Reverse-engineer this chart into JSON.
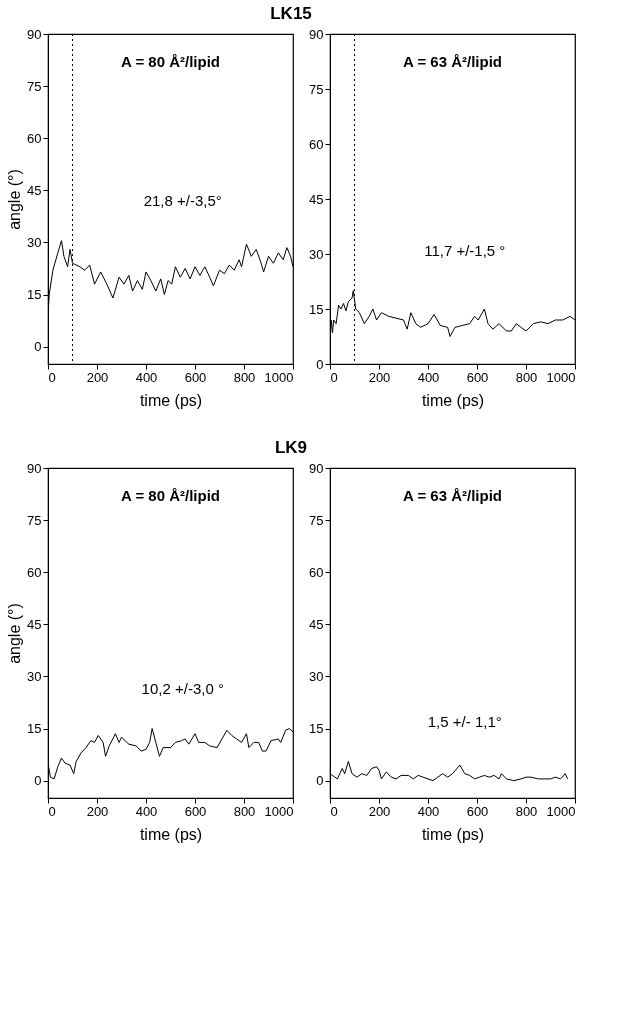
{
  "chart_data": [
    {
      "type": "line",
      "title": "LK15",
      "xlabel": "time (ps)",
      "ylabel": "angle (°)",
      "color": "#000000",
      "line_style": "solid",
      "xlim": [
        0,
        1000
      ],
      "ylim": [
        -5,
        90
      ],
      "xticks": [
        0,
        200,
        400,
        600,
        800,
        1000
      ],
      "yticks": [
        0,
        15,
        30,
        45,
        60,
        75,
        90
      ],
      "annotations": [
        "A = 80 Å²/lipid",
        "21,8 +/-3,5°"
      ],
      "ref_lines": [
        {
          "axis": "x",
          "value": 100,
          "line_style": "dotted"
        }
      ],
      "x": [
        0,
        5,
        20,
        40,
        55,
        65,
        80,
        90,
        100,
        130,
        150,
        170,
        190,
        215,
        240,
        265,
        290,
        310,
        330,
        345,
        365,
        385,
        400,
        420,
        440,
        460,
        475,
        490,
        505,
        520,
        540,
        560,
        580,
        600,
        620,
        640,
        660,
        675,
        700,
        720,
        740,
        760,
        780,
        790,
        810,
        830,
        850,
        870,
        880,
        900,
        920,
        940,
        960,
        975,
        990,
        1000
      ],
      "values": [
        9,
        15,
        22,
        27,
        30.5,
        26,
        23,
        28,
        24,
        23,
        22,
        23.5,
        18,
        21.5,
        18,
        14,
        20,
        18,
        20.5,
        16,
        19,
        16.5,
        21.5,
        19,
        16,
        19.5,
        15,
        19,
        18,
        23,
        20,
        22.5,
        19.5,
        23,
        20.5,
        23,
        20,
        17.5,
        22,
        21,
        23.5,
        22,
        25,
        23,
        29.5,
        26,
        28,
        24,
        21.5,
        26,
        24,
        27,
        25,
        28.5,
        26,
        23
      ]
    },
    {
      "type": "line",
      "xlabel": "time (ps)",
      "color": "#000000",
      "line_style": "solid",
      "xlim": [
        0,
        1000
      ],
      "ylim": [
        0,
        90
      ],
      "xticks": [
        0,
        200,
        400,
        600,
        800,
        1000
      ],
      "yticks": [
        0,
        15,
        30,
        45,
        60,
        75,
        90
      ],
      "annotations": [
        "A = 63 Å²/lipid",
        "11,7 +/-1,5 °"
      ],
      "ref_lines": [
        {
          "axis": "x",
          "value": 100,
          "line_style": "dotted"
        }
      ],
      "x": [
        0,
        5,
        10,
        15,
        25,
        35,
        45,
        55,
        65,
        75,
        90,
        95,
        105,
        120,
        140,
        160,
        175,
        190,
        210,
        240,
        270,
        300,
        315,
        330,
        350,
        370,
        400,
        425,
        450,
        480,
        490,
        510,
        540,
        570,
        590,
        605,
        630,
        645,
        665,
        690,
        720,
        740,
        760,
        780,
        800,
        830,
        860,
        890,
        920,
        950,
        980,
        1000
      ],
      "values": [
        7,
        12,
        8.5,
        12,
        11,
        16,
        15,
        16.5,
        14.5,
        17,
        18,
        20,
        15,
        14,
        11,
        13,
        15,
        12,
        14,
        13,
        12.5,
        12,
        9.5,
        14,
        11,
        10,
        11,
        13.5,
        10.5,
        10,
        7.5,
        10,
        10.5,
        11,
        13,
        12,
        15,
        11,
        9.5,
        11,
        9,
        9,
        11,
        10,
        9,
        11,
        11.5,
        11,
        12,
        12,
        13,
        12
      ]
    },
    {
      "type": "line",
      "title": "LK9",
      "xlabel": "time (ps)",
      "ylabel": "angle (°)",
      "color": "#000000",
      "line_style": "solid",
      "xlim": [
        0,
        1000
      ],
      "ylim": [
        -5,
        90
      ],
      "xticks": [
        0,
        200,
        400,
        600,
        800,
        1000
      ],
      "yticks": [
        0,
        15,
        30,
        45,
        60,
        75,
        90
      ],
      "annotations": [
        "A = 80 Å²/lipid",
        "10,2 +/-3,0 °"
      ],
      "x": [
        0,
        10,
        25,
        40,
        55,
        70,
        90,
        105,
        115,
        135,
        155,
        175,
        190,
        205,
        225,
        235,
        250,
        275,
        290,
        300,
        330,
        360,
        380,
        400,
        415,
        425,
        440,
        455,
        470,
        500,
        520,
        545,
        560,
        575,
        600,
        615,
        640,
        660,
        690,
        710,
        730,
        750,
        770,
        790,
        810,
        820,
        840,
        860,
        875,
        890,
        910,
        940,
        950,
        970,
        985,
        1000
      ],
      "values": [
        5,
        1,
        0.5,
        4,
        6.5,
        5,
        4.5,
        2,
        5.5,
        8,
        9.5,
        11.5,
        11,
        13,
        11,
        7,
        10,
        13.5,
        11,
        12.5,
        10.5,
        10,
        8.5,
        9,
        11,
        15,
        11,
        7,
        9.5,
        9.5,
        11,
        11.5,
        12,
        10.5,
        13.5,
        11,
        11,
        10,
        9.5,
        12,
        14.5,
        13,
        12,
        11,
        13.5,
        9.5,
        11,
        11,
        8.5,
        8.5,
        11.5,
        12,
        11,
        14.5,
        15,
        14
      ]
    },
    {
      "type": "line",
      "xlabel": "time (ps)",
      "color": "#000000",
      "line_style": "solid",
      "xlim": [
        0,
        1000
      ],
      "ylim": [
        -5,
        90
      ],
      "xticks": [
        0,
        200,
        400,
        600,
        800,
        1000
      ],
      "yticks": [
        0,
        15,
        30,
        45,
        60,
        75,
        90
      ],
      "annotations": [
        "A = 63 Å²/lipid",
        "1,5 +/-  1,1°"
      ],
      "x": [
        0,
        10,
        30,
        50,
        60,
        75,
        90,
        110,
        130,
        150,
        170,
        190,
        200,
        210,
        230,
        250,
        270,
        290,
        320,
        340,
        360,
        380,
        400,
        420,
        440,
        460,
        480,
        500,
        530,
        550,
        570,
        590,
        610,
        630,
        650,
        670,
        690,
        700,
        720,
        750,
        780,
        800,
        820,
        850,
        880,
        900,
        920,
        940,
        955,
        960,
        970
      ],
      "values": [
        2,
        1.5,
        0.5,
        3.5,
        2,
        5.5,
        2,
        1,
        2,
        1.5,
        3.5,
        4,
        3,
        0.5,
        2.5,
        1,
        0.5,
        1.5,
        1.5,
        0.5,
        1.5,
        1,
        0.5,
        0,
        1,
        2,
        1,
        2,
        4.5,
        2,
        1.5,
        0.5,
        1,
        1.5,
        1,
        1.5,
        0.5,
        2,
        0.5,
        0,
        0.5,
        1,
        1,
        0.5,
        0.5,
        0.5,
        1,
        0.5,
        1.5,
        2,
        0.5
      ]
    }
  ]
}
